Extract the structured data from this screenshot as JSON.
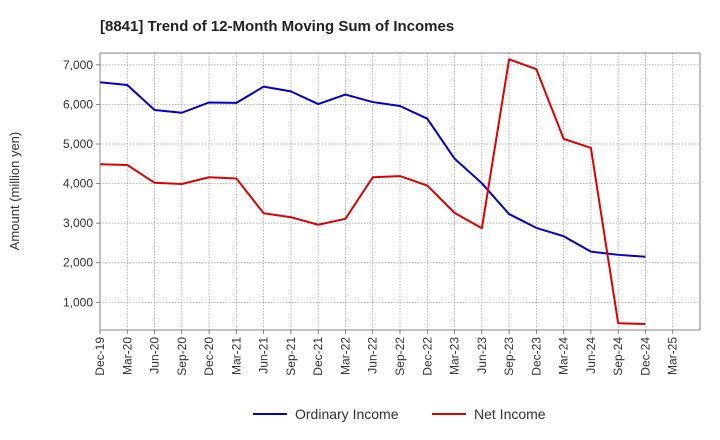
{
  "chart_data": {
    "type": "line",
    "title": "[8841]  Trend of 12-Month Moving Sum of Incomes",
    "ylabel": "Amount (million yen)",
    "xlabel": "",
    "ylim": [
      300,
      7300
    ],
    "y_ticks": [
      1000,
      2000,
      3000,
      4000,
      5000,
      6000,
      7000
    ],
    "y_tick_labels": [
      "1,000",
      "2,000",
      "3,000",
      "4,000",
      "5,000",
      "6,000",
      "7,000"
    ],
    "x_tick_labels": [
      "Dec-19",
      "Mar-20",
      "Jun-20",
      "Sep-20",
      "Dec-20",
      "Mar-21",
      "Jun-21",
      "Sep-21",
      "Dec-21",
      "Mar-22",
      "Jun-22",
      "Sep-22",
      "Dec-22",
      "Mar-23",
      "Jun-23",
      "Sep-23",
      "Dec-23",
      "Mar-24",
      "Jun-24",
      "Sep-24",
      "Dec-24",
      "Mar-25"
    ],
    "grid": true,
    "legend_position": "bottom-center",
    "series": [
      {
        "name": "Ordinary Income",
        "color": "#0000cc",
        "values": [
          6560,
          6490,
          5860,
          5790,
          6050,
          6040,
          6450,
          6330,
          6010,
          6250,
          6060,
          5960,
          5640,
          4630,
          4010,
          3230,
          2880,
          2670,
          2280,
          2200,
          2150,
          null
        ]
      },
      {
        "name": "Net Income",
        "color": "#dd0000",
        "values": [
          4490,
          4470,
          4020,
          3990,
          4160,
          4130,
          3250,
          3150,
          2960,
          3110,
          4160,
          4190,
          3950,
          3260,
          2870,
          7140,
          6890,
          5130,
          4900,
          470,
          450,
          null
        ]
      }
    ]
  }
}
